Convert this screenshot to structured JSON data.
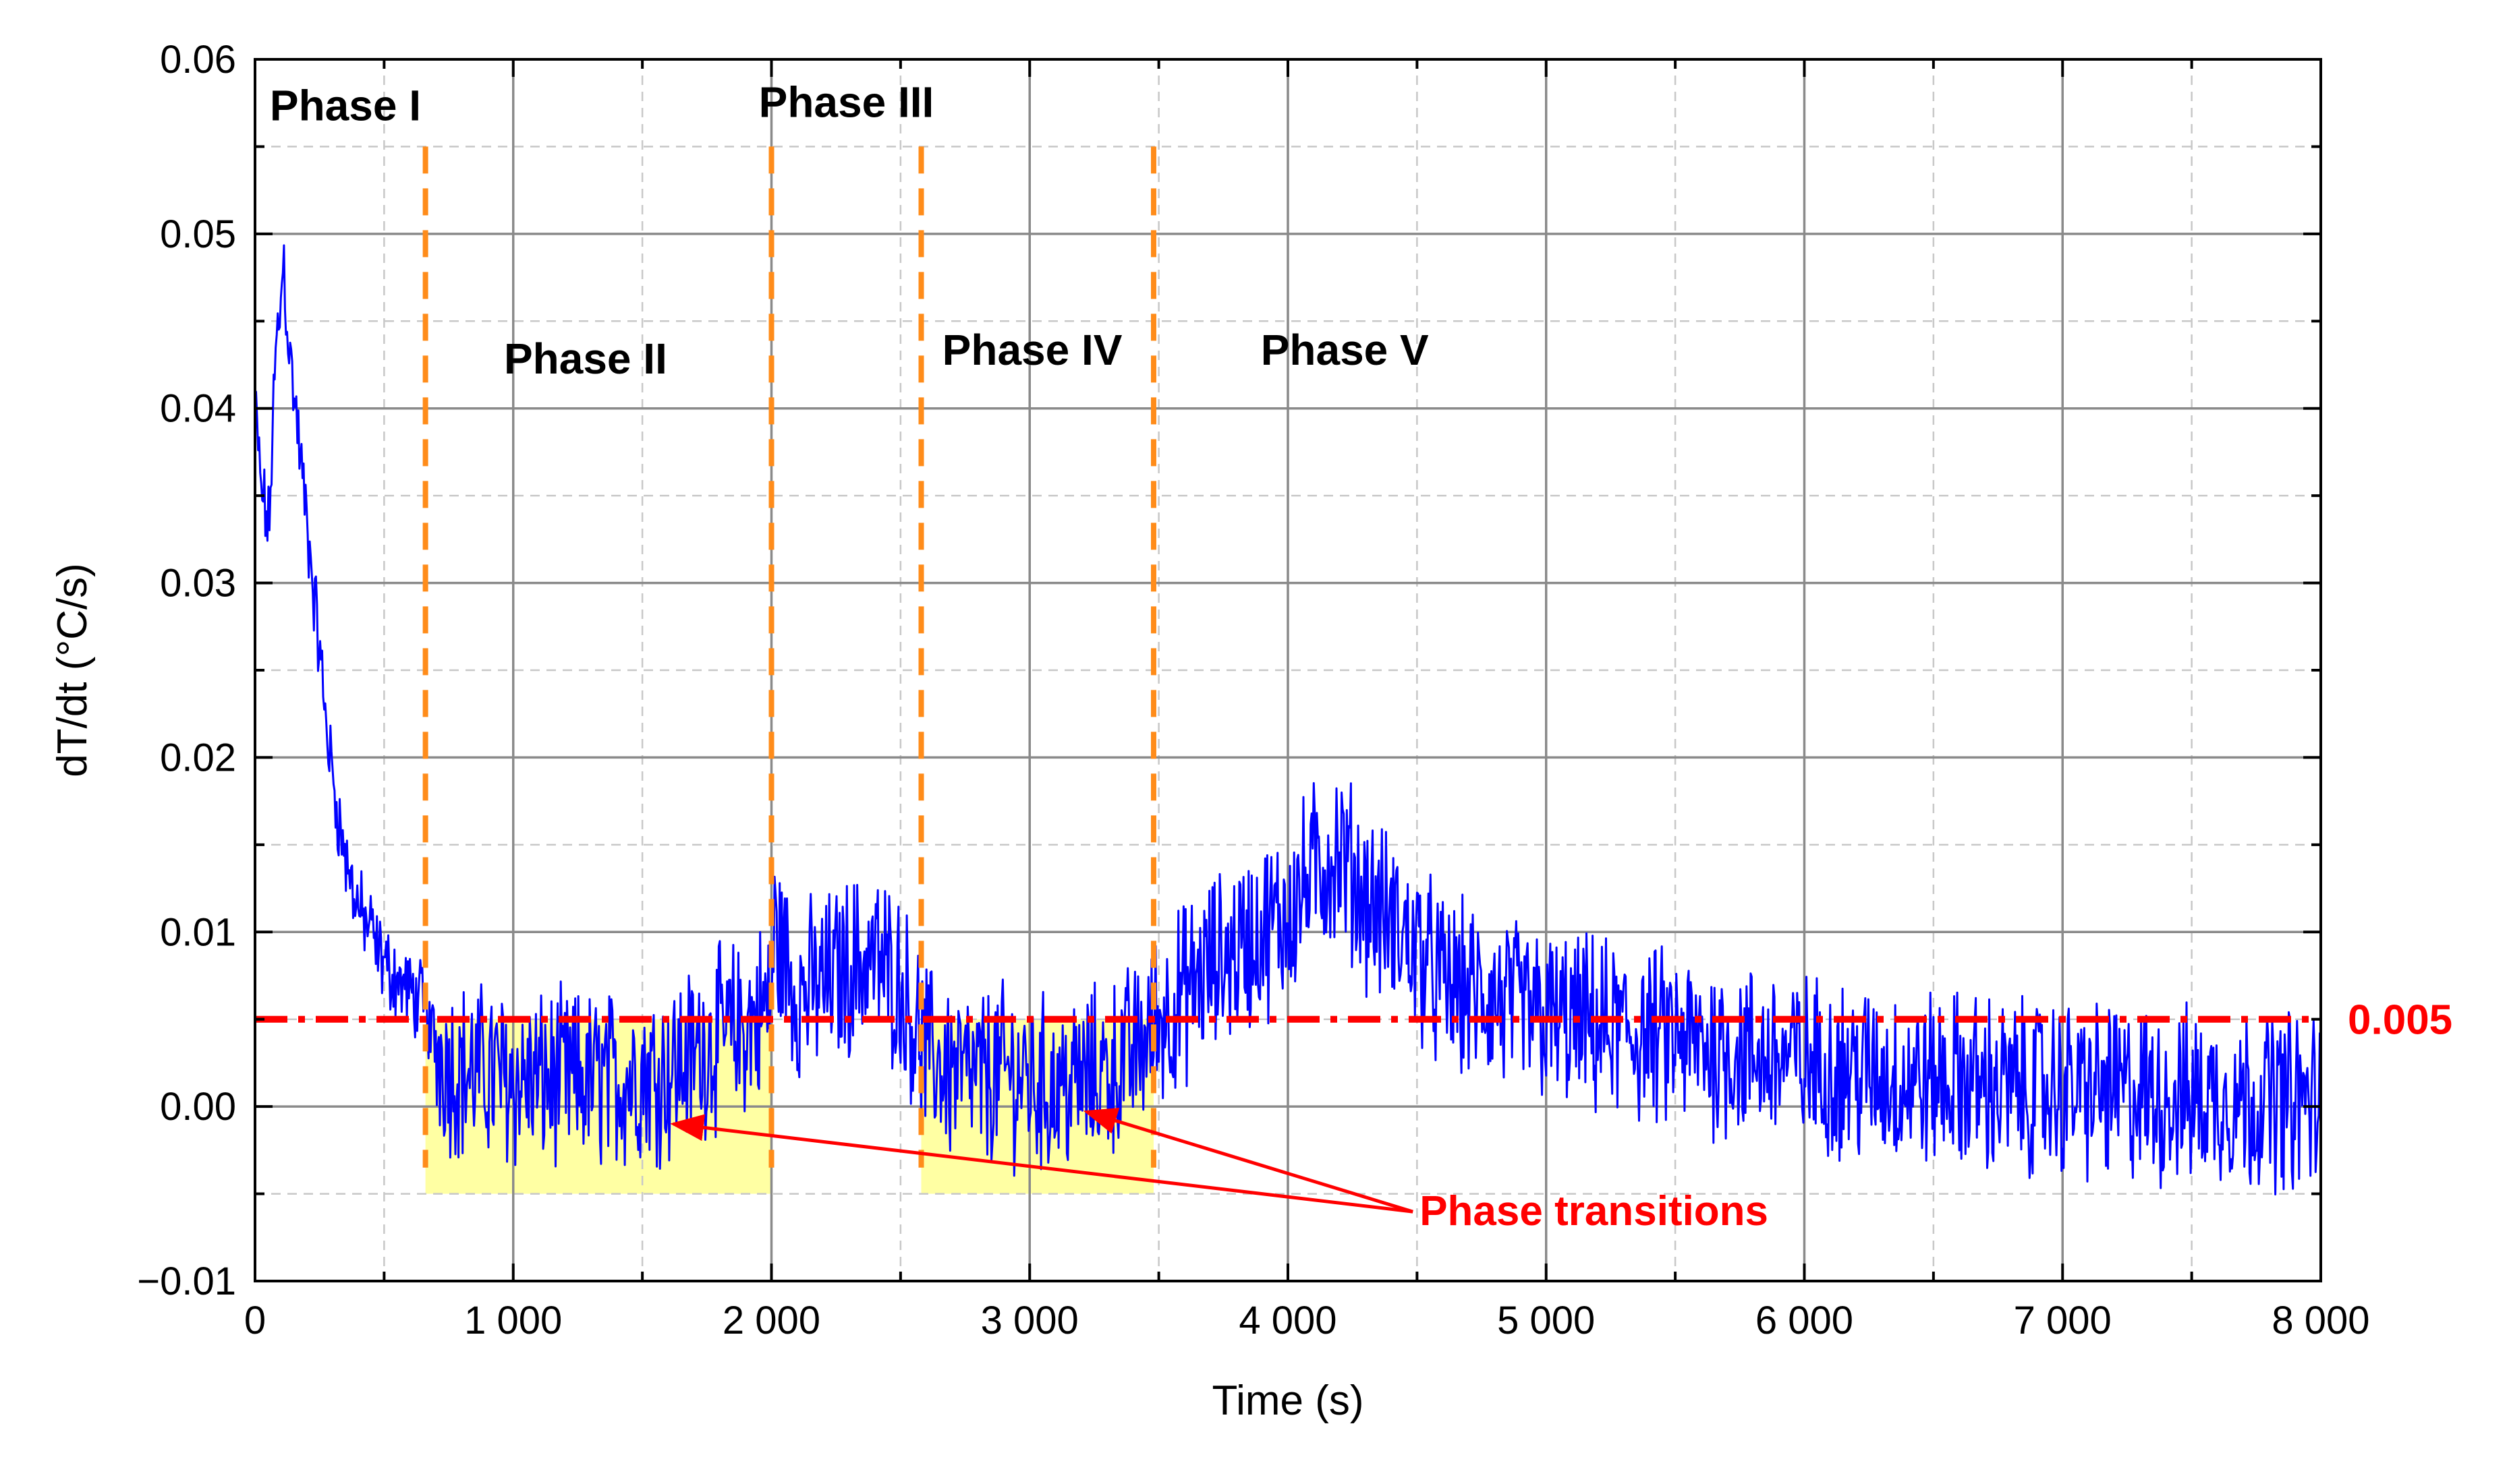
{
  "chart_data": {
    "type": "line",
    "xlabel": "Time (s)",
    "ylabel": "dT/dt (°C/s)",
    "xlim": [
      0,
      8000
    ],
    "ylim": [
      -0.01,
      0.06
    ],
    "x_ticks": [
      0,
      1000,
      2000,
      3000,
      4000,
      5000,
      6000,
      7000,
      8000
    ],
    "x_tick_labels": [
      "0",
      "1 000",
      "2 000",
      "3 000",
      "4 000",
      "5 000",
      "6 000",
      "7 000",
      "8 000"
    ],
    "y_ticks": [
      -0.01,
      0,
      0.01,
      0.02,
      0.03,
      0.04,
      0.05,
      0.06
    ],
    "y_tick_labels": [
      "−0.01",
      "0.00",
      "0.01",
      "0.02",
      "0.03",
      "0.04",
      "0.05",
      "0.06"
    ],
    "minor_grid_x": [
      500,
      1500,
      2500,
      3500,
      4500,
      5500,
      6500,
      7500
    ],
    "minor_grid_y": [
      -0.005,
      0.005,
      0.015,
      0.025,
      0.035,
      0.045,
      0.055
    ],
    "grid": true,
    "series": [
      {
        "name": "dT/dt",
        "color": "#0000ff",
        "x": [
          0,
          20,
          40,
          55,
          70,
          85,
          100,
          110,
          120,
          135,
          150,
          170,
          190,
          210,
          230,
          250,
          270,
          290,
          310,
          330,
          350,
          370,
          390,
          410,
          430,
          450,
          470,
          490,
          510,
          540,
          570,
          600,
          650,
          700,
          750,
          800,
          900,
          1000,
          1100,
          1200,
          1300,
          1400,
          1500,
          1600,
          1700,
          1800,
          1900,
          2000,
          2010,
          2100,
          2200,
          2300,
          2400,
          2500,
          2600,
          2700,
          2800,
          2900,
          3000,
          3100,
          3200,
          3300,
          3400,
          3500,
          3600,
          3700,
          3800,
          3900,
          4000,
          4100,
          4150,
          4200,
          4300,
          4400,
          4500,
          4600,
          4700,
          4800,
          4900,
          5000,
          5200,
          5400,
          5600,
          5800,
          6000,
          6200,
          6400,
          6600,
          6800,
          7000,
          7200,
          7400,
          7600,
          7800,
          8000
        ],
        "values": [
          0.04,
          0.036,
          0.034,
          0.033,
          0.04,
          0.044,
          0.046,
          0.049,
          0.046,
          0.043,
          0.041,
          0.038,
          0.035,
          0.032,
          0.029,
          0.026,
          0.023,
          0.02,
          0.018,
          0.016,
          0.014,
          0.013,
          0.012,
          0.011,
          0.0105,
          0.01,
          0.009,
          0.0085,
          0.008,
          0.0075,
          0.007,
          0.0065,
          0.006,
          0.0035,
          0.0025,
          0.002,
          0.002,
          0.0015,
          0.0015,
          0.0015,
          0.0015,
          0.0015,
          0.002,
          0.002,
          0.003,
          0.004,
          0.0045,
          0.006,
          0.01,
          0.0065,
          0.007,
          0.008,
          0.0085,
          0.007,
          0.003,
          0.002,
          0.0015,
          0.002,
          0.0015,
          0.001,
          0.0015,
          0.002,
          0.003,
          0.005,
          0.0065,
          0.008,
          0.009,
          0.01,
          0.011,
          0.0135,
          0.014,
          0.0145,
          0.012,
          0.0105,
          0.009,
          0.007,
          0.0065,
          0.006,
          0.0055,
          0.005,
          0.0045,
          0.004,
          0.0035,
          0.003,
          0.0025,
          0.002,
          0.0015,
          0.0015,
          0.001,
          0.001,
          0.0008,
          0.0005,
          0.0005,
          0.0005,
          0.0003
        ]
      }
    ],
    "noise_amplitude": 0.0045,
    "reference_line": {
      "y": 0.005,
      "label": "0.005",
      "color": "#ff0000"
    },
    "phase_boundaries": [
      660,
      2000,
      2580,
      3480
    ],
    "phase_boundary_color": "#ff8c1a",
    "phases": [
      {
        "label": "Phase I",
        "x": 350,
        "y": 0.0565
      },
      {
        "label": "Phase II",
        "x": 1280,
        "y": 0.042
      },
      {
        "label": "Phase III",
        "x": 2290,
        "y": 0.0567
      },
      {
        "label": "Phase IV",
        "x": 3010,
        "y": 0.0425
      },
      {
        "label": "Phase V",
        "x": 4220,
        "y": 0.0425
      }
    ],
    "shaded_regions": [
      {
        "x0": 660,
        "x1": 2000,
        "y0": -0.005,
        "y1": 0.005,
        "color": "#ffff99"
      },
      {
        "x0": 2580,
        "x1": 3480,
        "y0": -0.005,
        "y1": 0.005,
        "color": "#ffff99"
      }
    ],
    "annotation": {
      "label": "Phase transitions",
      "color": "#ff0000",
      "text_x": 4510,
      "text_y": -0.0068,
      "arrow_targets": [
        {
          "x": 1620,
          "y": -0.001
        },
        {
          "x": 3220,
          "y": -0.0003
        }
      ]
    }
  }
}
